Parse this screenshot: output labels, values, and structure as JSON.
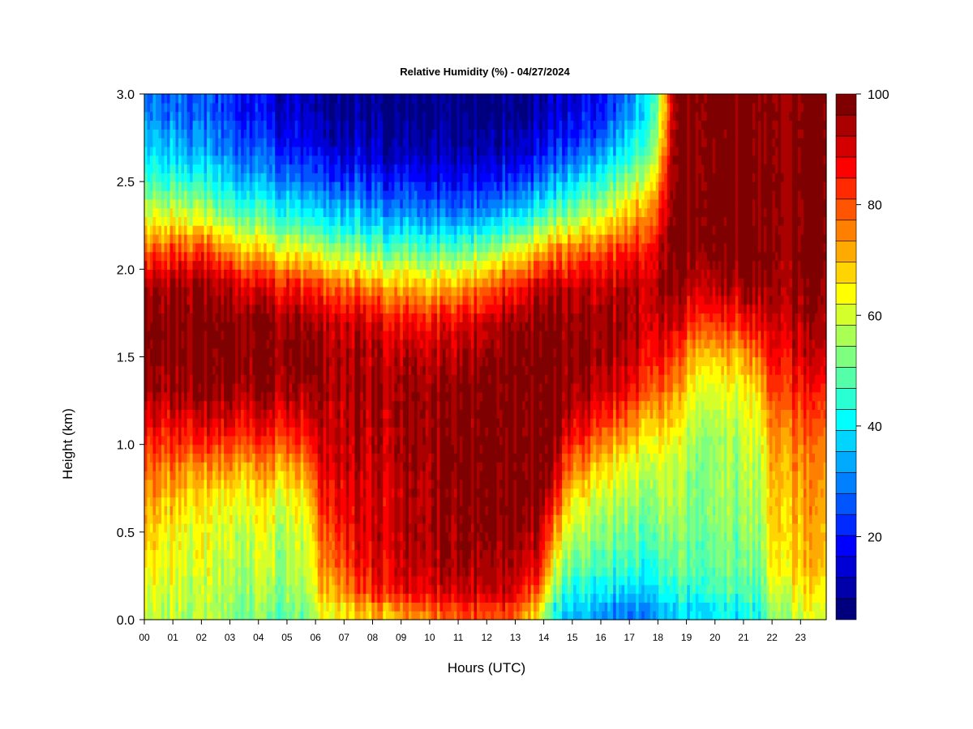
{
  "chart_data": {
    "type": "heatmap",
    "title": "Relative Humidity (%) - 04/27/2024",
    "xlabel": "Hours (UTC)",
    "ylabel": "Height (km)",
    "x_ticks": [
      "00",
      "01",
      "02",
      "03",
      "04",
      "05",
      "06",
      "07",
      "08",
      "09",
      "10",
      "11",
      "12",
      "13",
      "14",
      "15",
      "16",
      "17",
      "18",
      "19",
      "20",
      "21",
      "22",
      "23"
    ],
    "y_ticks": [
      "0.0",
      "0.5",
      "1.0",
      "1.5",
      "2.0",
      "2.5",
      "3.0"
    ],
    "xlim": [
      0,
      23.9
    ],
    "ylim": [
      0,
      3.0
    ],
    "colorbar": {
      "range": [
        5,
        100
      ],
      "ticks": [
        "20",
        "40",
        "60",
        "80",
        "100"
      ],
      "tick_values": [
        20,
        40,
        60,
        80,
        100
      ],
      "levels": [
        5,
        10,
        15,
        20,
        25,
        30,
        35,
        40,
        45,
        50,
        55,
        60,
        65,
        70,
        75,
        80,
        85,
        90,
        95,
        100
      ],
      "colors": [
        "#00007F",
        "#0000AA",
        "#0000D4",
        "#0000FF",
        "#002AFF",
        "#0055FF",
        "#007FFF",
        "#00AAFF",
        "#00D4FF",
        "#00FFFF",
        "#2AFFD4",
        "#55FFAA",
        "#7FFF7F",
        "#AAFF55",
        "#D4FF2A",
        "#FFFF00",
        "#FFD400",
        "#FFAA00",
        "#FF7F00",
        "#FF5500",
        "#FF2A00",
        "#FF0000",
        "#D40000",
        "#AA0000",
        "#7F0000"
      ]
    },
    "profile_heights_km": [
      0.05,
      0.15,
      0.3,
      0.5,
      0.7,
      0.9,
      1.1,
      1.3,
      1.5,
      1.7,
      1.9,
      2.1,
      2.3,
      2.5,
      2.7,
      2.9
    ],
    "profile_hours": [
      0,
      1,
      2,
      3,
      4,
      5,
      5.8,
      6.2,
      7,
      8,
      9,
      10,
      11,
      12,
      13,
      13.9,
      14.3,
      15,
      16,
      17,
      18,
      18.6,
      19,
      20,
      21,
      21.6,
      22,
      23,
      23.9
    ],
    "rh_profiles": [
      [
        60,
        62,
        65,
        70,
        74,
        80,
        88,
        95,
        99,
        99,
        95,
        80,
        62,
        48,
        38,
        30
      ],
      [
        58,
        60,
        62,
        64,
        70,
        78,
        88,
        95,
        99,
        99,
        96,
        82,
        62,
        46,
        35,
        28
      ],
      [
        56,
        58,
        60,
        62,
        66,
        76,
        88,
        96,
        99,
        99,
        96,
        82,
        60,
        44,
        32,
        26
      ],
      [
        54,
        56,
        58,
        60,
        64,
        74,
        88,
        96,
        99,
        98,
        92,
        74,
        52,
        38,
        28,
        22
      ],
      [
        52,
        55,
        57,
        60,
        64,
        74,
        86,
        95,
        98,
        97,
        88,
        68,
        48,
        34,
        24,
        18
      ],
      [
        50,
        54,
        56,
        58,
        62,
        74,
        86,
        95,
        98,
        96,
        86,
        64,
        44,
        30,
        20,
        14
      ],
      [
        52,
        56,
        60,
        62,
        66,
        78,
        88,
        95,
        97,
        95,
        84,
        62,
        42,
        28,
        18,
        12
      ],
      [
        64,
        70,
        74,
        80,
        86,
        90,
        94,
        96,
        97,
        94,
        82,
        60,
        40,
        26,
        16,
        10
      ],
      [
        66,
        74,
        82,
        86,
        90,
        92,
        93,
        94,
        95,
        92,
        78,
        56,
        38,
        24,
        14,
        9
      ],
      [
        70,
        84,
        88,
        90,
        90,
        92,
        94,
        95,
        94,
        90,
        74,
        52,
        34,
        22,
        12,
        8
      ],
      [
        72,
        86,
        90,
        92,
        92,
        93,
        94,
        95,
        92,
        86,
        70,
        50,
        32,
        20,
        10,
        7
      ],
      [
        76,
        88,
        92,
        94,
        94,
        95,
        96,
        95,
        92,
        86,
        68,
        48,
        30,
        18,
        10,
        7
      ],
      [
        80,
        90,
        95,
        96,
        97,
        98,
        98,
        97,
        94,
        88,
        72,
        50,
        30,
        18,
        10,
        7
      ],
      [
        82,
        92,
        96,
        98,
        99,
        99,
        99,
        99,
        98,
        92,
        78,
        56,
        34,
        20,
        11,
        7
      ],
      [
        80,
        90,
        95,
        98,
        99,
        99,
        99,
        99,
        99,
        97,
        86,
        64,
        40,
        24,
        13,
        8
      ],
      [
        62,
        76,
        86,
        92,
        98,
        99,
        99,
        99,
        99,
        98,
        90,
        70,
        46,
        28,
        16,
        10
      ],
      [
        42,
        50,
        62,
        74,
        86,
        94,
        98,
        99,
        99,
        98,
        92,
        74,
        50,
        32,
        20,
        12
      ],
      [
        36,
        42,
        50,
        58,
        66,
        78,
        90,
        96,
        98,
        97,
        92,
        78,
        56,
        38,
        24,
        16
      ],
      [
        34,
        40,
        48,
        54,
        60,
        70,
        82,
        92,
        96,
        96,
        92,
        80,
        62,
        44,
        30,
        20
      ],
      [
        28,
        36,
        44,
        50,
        56,
        62,
        74,
        86,
        92,
        94,
        93,
        84,
        70,
        54,
        40,
        30
      ],
      [
        34,
        40,
        46,
        52,
        56,
        60,
        68,
        78,
        86,
        92,
        94,
        90,
        82,
        70,
        58,
        52
      ],
      [
        36,
        42,
        48,
        52,
        56,
        58,
        64,
        72,
        80,
        90,
        96,
        98,
        99,
        99,
        98,
        96
      ],
      [
        38,
        44,
        50,
        52,
        54,
        56,
        60,
        66,
        74,
        86,
        94,
        98,
        99,
        99,
        99,
        99
      ],
      [
        40,
        46,
        50,
        52,
        54,
        54,
        56,
        60,
        68,
        82,
        92,
        98,
        99,
        99,
        99,
        99
      ],
      [
        40,
        46,
        50,
        52,
        54,
        56,
        58,
        62,
        70,
        84,
        94,
        99,
        99,
        99,
        99,
        99
      ],
      [
        42,
        48,
        52,
        54,
        56,
        58,
        62,
        68,
        78,
        90,
        96,
        99,
        99,
        99,
        99,
        99
      ],
      [
        58,
        62,
        66,
        70,
        72,
        74,
        78,
        84,
        90,
        94,
        97,
        99,
        99,
        99,
        99,
        99
      ],
      [
        60,
        64,
        68,
        70,
        72,
        74,
        78,
        84,
        90,
        94,
        97,
        99,
        99,
        99,
        99,
        99
      ],
      [
        62,
        66,
        70,
        72,
        74,
        76,
        80,
        86,
        92,
        95,
        97,
        99,
        99,
        99,
        99,
        99
      ]
    ]
  }
}
